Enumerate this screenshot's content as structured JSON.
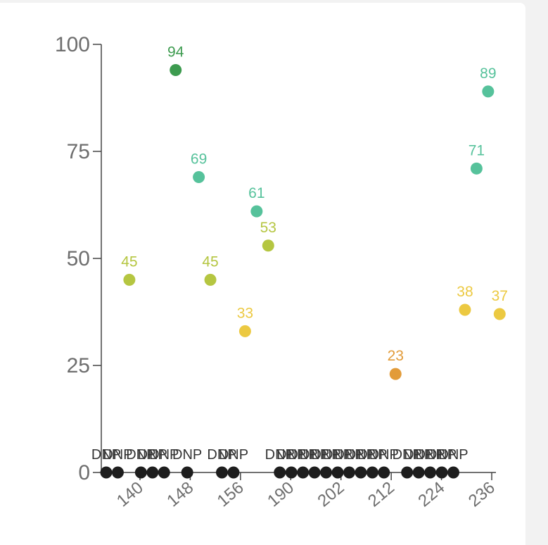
{
  "chart_data": {
    "type": "scatter",
    "ylim": [
      0,
      100
    ],
    "y_ticks": [
      0,
      25,
      50,
      75,
      100
    ],
    "x_tick_labels": [
      "140",
      "148",
      "156",
      "190",
      "202",
      "212",
      "224",
      "236"
    ],
    "dnp_label": "DNP",
    "value_colors": {
      "90": "#3d9b4f",
      "60": "#56c29b",
      "40": "#b5c641",
      "30": "#ecc941",
      "0": "#e29b39"
    },
    "dnp_color": "#1e1e1e",
    "points": [
      {
        "y": null,
        "label": "DNP"
      },
      {
        "y": null,
        "label": "DNP"
      },
      {
        "y": 45,
        "label": "45"
      },
      {
        "y": null,
        "label": "DNP"
      },
      {
        "y": null,
        "label": "DNP"
      },
      {
        "y": null,
        "label": "DNP"
      },
      {
        "y": 94,
        "label": "94"
      },
      {
        "y": null,
        "label": "DNP"
      },
      {
        "y": 69,
        "label": "69"
      },
      {
        "y": 45,
        "label": "45"
      },
      {
        "y": null,
        "label": "DNP"
      },
      {
        "y": null,
        "label": "DNP"
      },
      {
        "y": 33,
        "label": "33"
      },
      {
        "y": 61,
        "label": "61"
      },
      {
        "y": 53,
        "label": "53"
      },
      {
        "y": null,
        "label": "DNP"
      },
      {
        "y": null,
        "label": "DNP"
      },
      {
        "y": null,
        "label": "DNP"
      },
      {
        "y": null,
        "label": "DNP"
      },
      {
        "y": null,
        "label": "DNP"
      },
      {
        "y": null,
        "label": "DNP"
      },
      {
        "y": null,
        "label": "DNP"
      },
      {
        "y": null,
        "label": "DNP"
      },
      {
        "y": null,
        "label": "DNP"
      },
      {
        "y": null,
        "label": "DNP"
      },
      {
        "y": 23,
        "label": "23"
      },
      {
        "y": null,
        "label": "DNP"
      },
      {
        "y": null,
        "label": "DNP"
      },
      {
        "y": null,
        "label": "DNP"
      },
      {
        "y": null,
        "label": "DNP"
      },
      {
        "y": null,
        "label": "DNP"
      },
      {
        "y": 38,
        "label": "38"
      },
      {
        "y": 71,
        "label": "71"
      },
      {
        "y": 89,
        "label": "89"
      },
      {
        "y": 37,
        "label": "37"
      }
    ]
  }
}
